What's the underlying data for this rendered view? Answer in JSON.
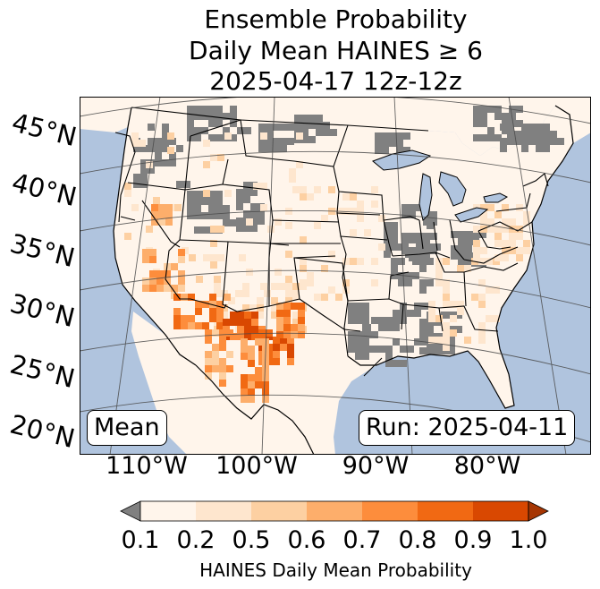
{
  "title": {
    "line1": "Ensemble Probability",
    "line2": "Daily Mean HAINES ≥ 6",
    "line3": "2025-04-17 12z-12z"
  },
  "map": {
    "lat_labels": [
      "45°N",
      "40°N",
      "35°N",
      "30°N",
      "25°N",
      "20°N"
    ],
    "lon_labels": [
      "110°W",
      "100°W",
      "90°W",
      "80°W"
    ],
    "stat_label": "Mean",
    "run_label": "Run: 2025-04-11",
    "colors": {
      "ocean": "#b0c4de",
      "no_data": "#808080",
      "border": "#000000",
      "gridline": "#555555"
    }
  },
  "colorbar": {
    "tick_labels": [
      "0.1",
      "0.2",
      "0.5",
      "0.6",
      "0.7",
      "0.8",
      "0.9",
      "1.0"
    ],
    "colors": [
      "#fff5eb",
      "#fee6ce",
      "#fdd0a2",
      "#fdae6b",
      "#fd8d3c",
      "#f16913",
      "#d94801"
    ],
    "under_color": "#808080",
    "over_color": "#a63603",
    "title": "HAINES Daily Mean Probability"
  }
}
